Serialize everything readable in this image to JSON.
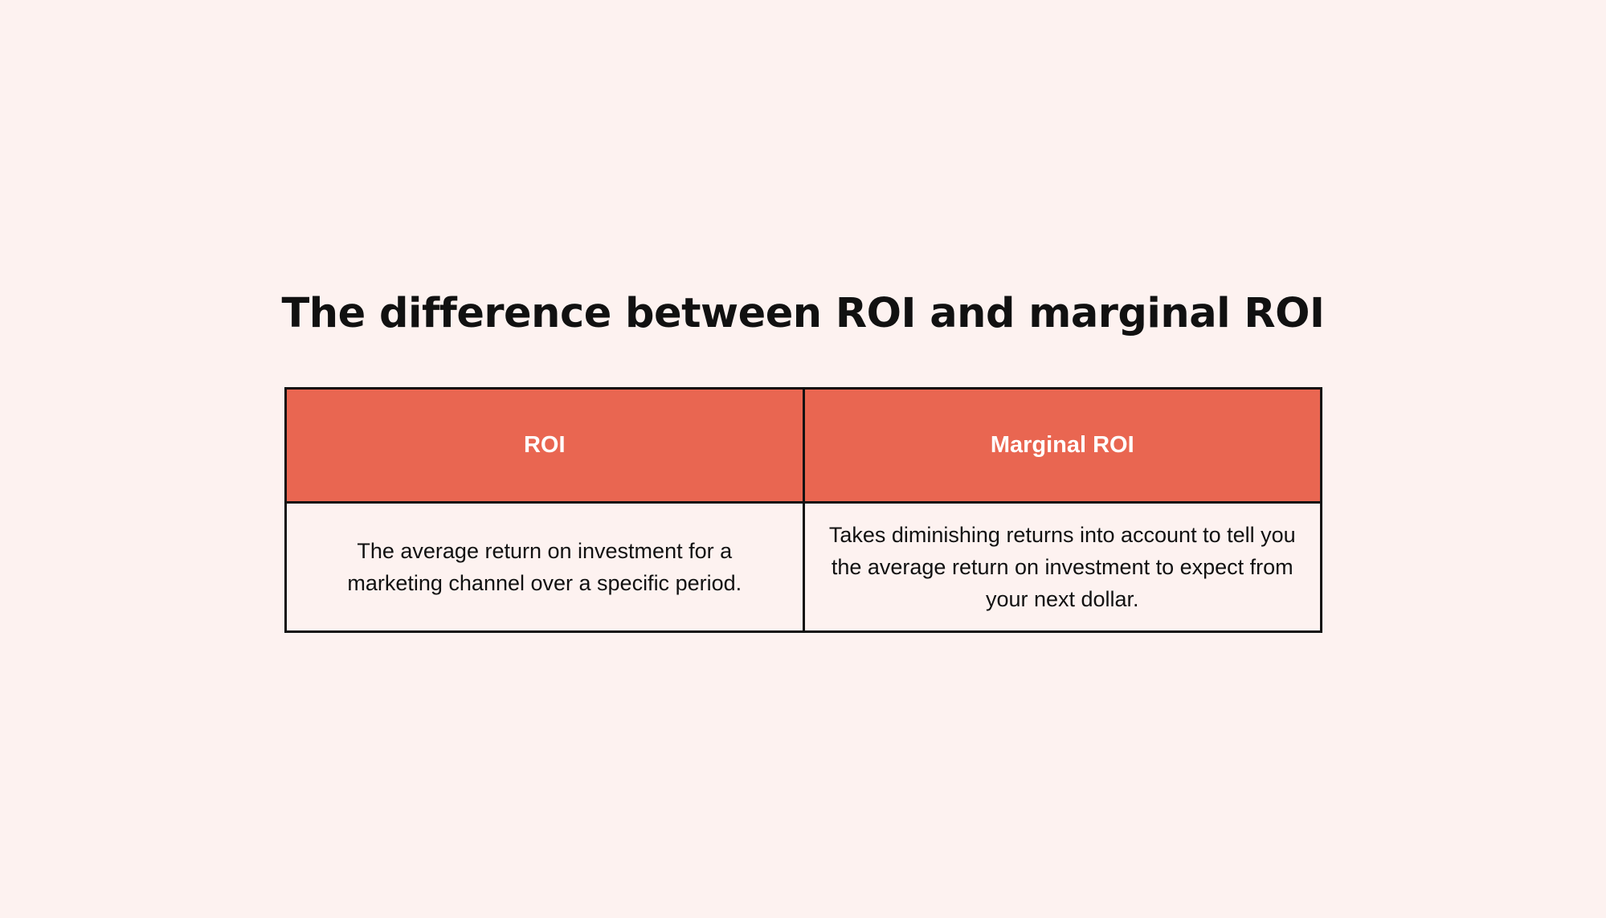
{
  "title": "The difference between ROI and marginal ROI",
  "table": {
    "headers": [
      "ROI",
      "Marginal ROI"
    ],
    "rows": [
      [
        "The average return on investment for a marketing channel over a specific period.",
        "Takes diminishing returns into account to tell you the average return on investment to expect from your next dollar."
      ]
    ]
  },
  "colors": {
    "background": "#fdf2f0",
    "header_fill": "#e96651",
    "header_text": "#ffffff",
    "border": "#111111",
    "text": "#111111"
  }
}
